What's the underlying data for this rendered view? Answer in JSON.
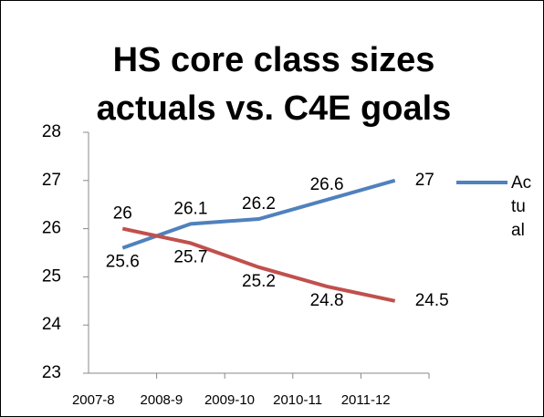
{
  "chart_data": {
    "type": "line",
    "title": "HS core class sizes actuals vs. C4E goals",
    "categories": [
      "2007-8",
      "2008-9",
      "2009-10",
      "2010-11",
      "2011-12"
    ],
    "series": [
      {
        "name": "Actual",
        "color": "#4f81bd",
        "values": [
          25.6,
          26.1,
          26.2,
          26.6,
          27
        ]
      },
      {
        "color": "#c0504d",
        "values": [
          26,
          25.7,
          25.2,
          24.8,
          24.5
        ]
      }
    ],
    "ylim": [
      23,
      28
    ],
    "yticks": [
      23,
      24,
      25,
      26,
      27,
      28
    ],
    "legend": "right"
  }
}
